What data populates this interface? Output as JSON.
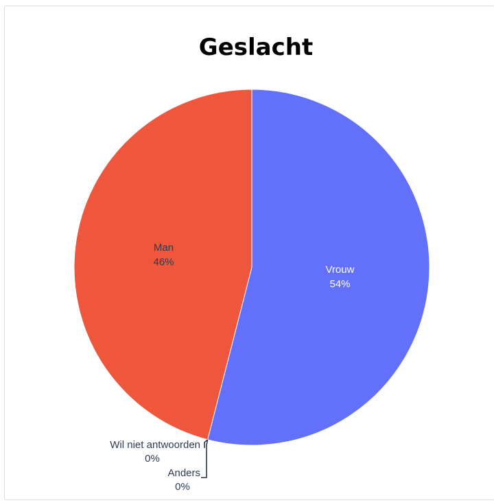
{
  "chart_data": {
    "type": "pie",
    "title": "Geslacht",
    "slices": [
      {
        "label": "Vrouw",
        "value": 54,
        "percent_label": "54%",
        "color": "#6270fb",
        "label_color": "#ffffff"
      },
      {
        "label": "Anders",
        "value": 0,
        "percent_label": "0%",
        "color": "#1f2d4d",
        "label_color": "#2b3a55"
      },
      {
        "label": "Wil niet antwoorden",
        "value": 0,
        "percent_label": "0%",
        "color": "#1f2d4d",
        "label_color": "#2b3a55"
      },
      {
        "label": "Man",
        "value": 46,
        "percent_label": "46%",
        "color": "#ef573c",
        "label_color": "#2b3a55"
      }
    ],
    "start_angle_deg": 0,
    "direction": "clockwise",
    "legend": "none"
  }
}
